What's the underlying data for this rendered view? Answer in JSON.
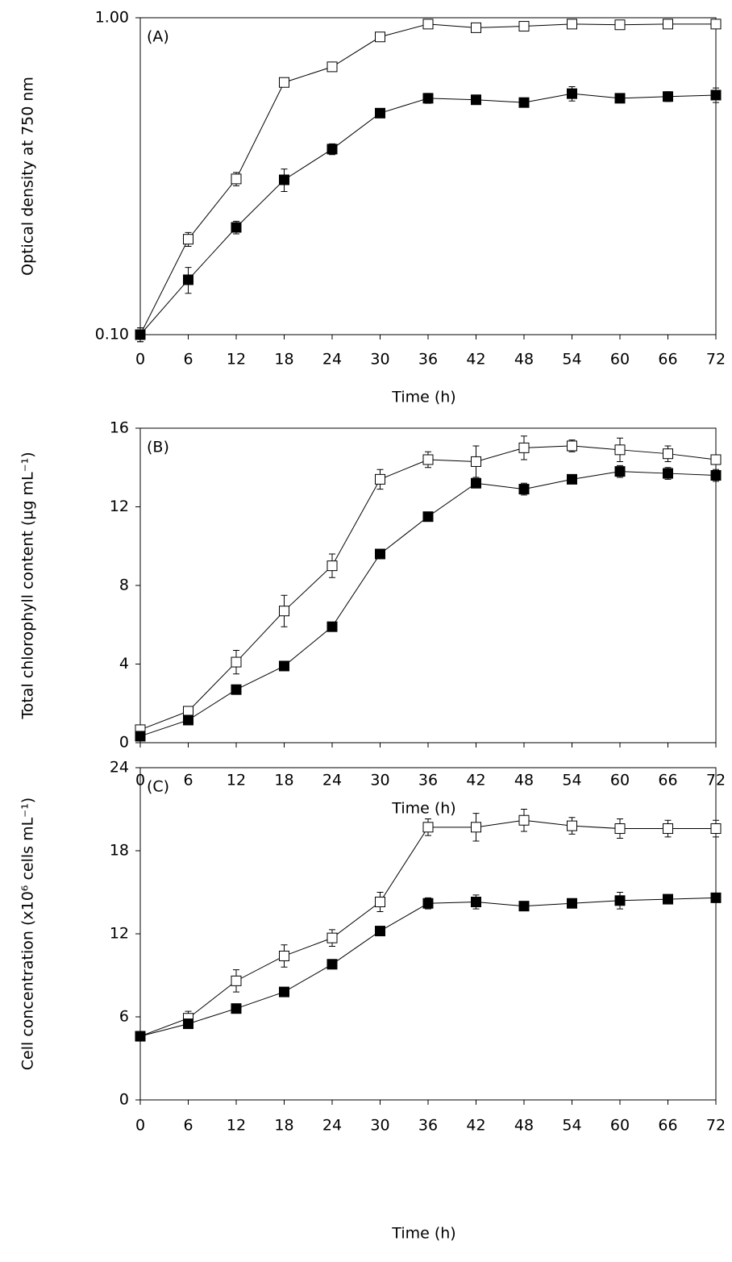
{
  "chart_data": [
    {
      "type": "line",
      "panel_label": "(A)",
      "xlabel": "Time (h)",
      "ylabel": "Optical density at 750 nm",
      "x": [
        0,
        6,
        12,
        18,
        24,
        30,
        36,
        42,
        48,
        54,
        60,
        66,
        72
      ],
      "xlim": [
        0,
        72
      ],
      "xticks": [
        0,
        6,
        12,
        18,
        24,
        30,
        36,
        42,
        48,
        54,
        60,
        66,
        72
      ],
      "yscale": "log",
      "ylim": [
        0.1,
        1
      ],
      "yticks": [
        {
          "value": 0.1,
          "label": "0.10"
        },
        {
          "value": 1,
          "label": "1.00"
        }
      ],
      "series": [
        {
          "color": "#ffffff",
          "values": [
            0.1,
            0.2,
            0.31,
            0.625,
            0.7,
            0.87,
            0.955,
            0.93,
            0.94,
            0.955,
            0.95,
            0.955,
            0.955
          ],
          "errors": [
            0.005,
            0.01,
            0.015,
            0.01,
            0.01,
            0.01,
            0.01,
            0.01,
            0.01,
            0.01,
            0.01,
            0.01,
            0.01
          ]
        },
        {
          "color": "#000000",
          "values": [
            0.1,
            0.149,
            0.218,
            0.308,
            0.385,
            0.5,
            0.557,
            0.551,
            0.54,
            0.576,
            0.557,
            0.564,
            0.57
          ],
          "errors": [
            0.005,
            0.014,
            0.01,
            0.025,
            0.015,
            0.01,
            0.02,
            0.015,
            0.015,
            0.03,
            0.015,
            0.02,
            0.03
          ]
        }
      ]
    },
    {
      "type": "line",
      "panel_label": "(B)",
      "xlabel": "Time (h)",
      "ylabel": "Total chlorophyll content (µg mL⁻¹)",
      "x": [
        0,
        6,
        12,
        18,
        24,
        30,
        36,
        42,
        48,
        54,
        60,
        66,
        72
      ],
      "xlim": [
        0,
        72
      ],
      "xticks": [
        0,
        6,
        12,
        18,
        24,
        30,
        36,
        42,
        48,
        54,
        60,
        66,
        72
      ],
      "ylim": [
        0,
        16
      ],
      "yticks": [
        0,
        4,
        8,
        12,
        16
      ],
      "series": [
        {
          "color": "#ffffff",
          "values": [
            0.66,
            1.6,
            4.1,
            6.7,
            9.0,
            13.4,
            14.4,
            14.3,
            15.0,
            15.1,
            14.9,
            14.7,
            14.4
          ],
          "errors": [
            0.2,
            0.2,
            0.6,
            0.8,
            0.6,
            0.5,
            0.4,
            0.8,
            0.6,
            0.3,
            0.6,
            0.4,
            0.2
          ]
        },
        {
          "color": "#000000",
          "values": [
            0.33,
            1.15,
            2.7,
            3.9,
            5.9,
            9.6,
            11.5,
            13.2,
            12.9,
            13.4,
            13.8,
            13.7,
            13.6
          ],
          "errors": [
            0.1,
            0.1,
            0.1,
            0.1,
            0.1,
            0.1,
            0.2,
            0.2,
            0.3,
            0.2,
            0.3,
            0.3,
            0.3
          ]
        }
      ]
    },
    {
      "type": "line",
      "panel_label": "(C)",
      "xlabel": "Time (h)",
      "ylabel": "Cell concentration (x10⁶ cells mL⁻¹)",
      "x": [
        0,
        6,
        12,
        18,
        24,
        30,
        36,
        42,
        48,
        54,
        60,
        66,
        72
      ],
      "xlim": [
        0,
        72
      ],
      "xticks": [
        0,
        6,
        12,
        18,
        24,
        30,
        36,
        42,
        48,
        54,
        60,
        66,
        72
      ],
      "ylim": [
        0,
        24
      ],
      "yticks": [
        0,
        6,
        12,
        18,
        24
      ],
      "series": [
        {
          "color": "#ffffff",
          "values": [
            4.6,
            5.9,
            8.6,
            10.4,
            11.7,
            14.3,
            19.7,
            19.7,
            20.2,
            19.8,
            19.6,
            19.6,
            19.6
          ],
          "errors": [
            0.2,
            0.5,
            0.8,
            0.8,
            0.6,
            0.7,
            0.6,
            1.0,
            0.8,
            0.6,
            0.7,
            0.6,
            0.6
          ]
        },
        {
          "color": "#000000",
          "values": [
            4.6,
            5.5,
            6.6,
            7.8,
            9.8,
            12.2,
            14.2,
            14.3,
            14.0,
            14.2,
            14.4,
            14.5,
            14.6
          ],
          "errors": [
            0.2,
            0.2,
            0.2,
            0.2,
            0.2,
            0.3,
            0.4,
            0.5,
            0.3,
            0.3,
            0.6,
            0.3,
            0.3
          ]
        }
      ]
    }
  ]
}
